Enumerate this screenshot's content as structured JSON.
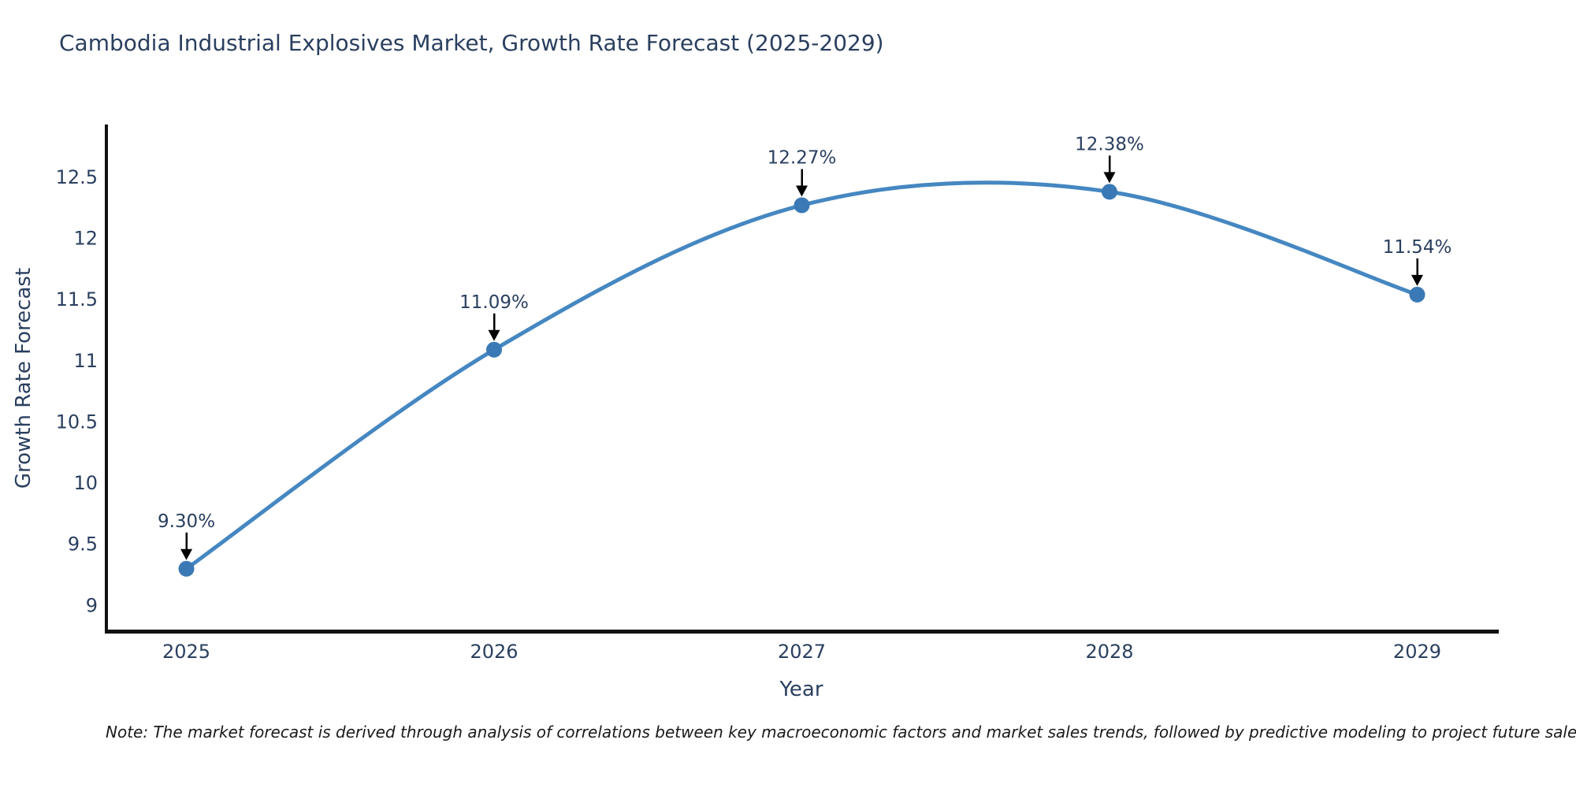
{
  "title": "Cambodia Industrial Explosives Market, Growth Rate Forecast (2025-2029)",
  "note": "Note: The market forecast is derived through analysis of correlations between key macroeconomic factors and market sales trends, followed by predictive modeling to project future sales.",
  "chart_data": {
    "type": "line",
    "title": "Cambodia Industrial Explosives Market, Growth Rate Forecast (2025-2029)",
    "xlabel": "Year",
    "ylabel": "Growth Rate Forecast",
    "x": [
      2025,
      2026,
      2027,
      2028,
      2029
    ],
    "series": [
      {
        "name": "Growth Rate Forecast",
        "values": [
          9.3,
          11.09,
          12.27,
          12.38,
          11.54
        ]
      }
    ],
    "point_labels": [
      "9.30%",
      "11.09%",
      "12.27%",
      "12.38%",
      "11.54%"
    ],
    "yticks": [
      9,
      9.5,
      10,
      10.5,
      11,
      11.5,
      12,
      12.5
    ],
    "ylim": [
      8.79,
      12.93
    ],
    "xlim": [
      2024.74,
      2029.26
    ],
    "line_shape": "spline",
    "grid": false,
    "legend": "none",
    "colors": {
      "line": "#4587c1",
      "marker": "#3a79b5",
      "annotation_arrow": "#000000",
      "text": "#2a3f5f",
      "axis_line": "#111111"
    }
  }
}
